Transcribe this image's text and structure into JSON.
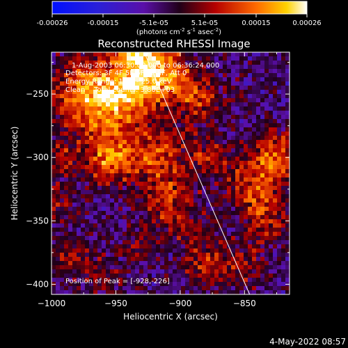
{
  "colorbar": {
    "ticks": [
      "-0.00026",
      "-0.00015",
      "-5.1e-05",
      "5.1e-05",
      "0.00015",
      "0.00026"
    ],
    "unit_main": "(photons cm",
    "unit_exp1": "-2",
    "unit_s": " s",
    "unit_exp2": "-1",
    "unit_asec": " asec",
    "unit_exp3": "-2",
    "unit_close": ")"
  },
  "chart_data": {
    "type": "heatmap",
    "title": "Reconstructed RHESSI Image",
    "xlabel": "Heliocentric X (arcsec)",
    "ylabel": "Heliocentric Y (arcsec)",
    "xlim": [
      -1000,
      -815
    ],
    "ylim": [
      -408,
      -217
    ],
    "xticks": [
      -1000,
      -950,
      -900,
      -850
    ],
    "yticks": [
      -250,
      -300,
      -350,
      -400
    ],
    "xtick_labels": [
      "−1000",
      "−950",
      "−900",
      "−850"
    ],
    "ytick_labels": [
      "−250",
      "−300",
      "−350",
      "−400"
    ],
    "colorscale_range": [
      -0.00026,
      0.00026
    ],
    "annotations": [
      "1-Aug-2003 06:30:00.000 to 06:36:24.000",
      "Detectors: 3F 4F 5F 6F 7F 8F, Att 0",
      "Energy Range: 12.0 - 25.0 keV",
      "Clean    Total counts: 3.80E+03"
    ],
    "peak_label": "Position of Peak = [-928,-226]",
    "peak_position": [
      -928,
      -226
    ],
    "limb_line": [
      [
        -928,
        -217
      ],
      [
        -846,
        -408
      ]
    ]
  },
  "footer": {
    "timestamp": "4-May-2022 08:57"
  }
}
